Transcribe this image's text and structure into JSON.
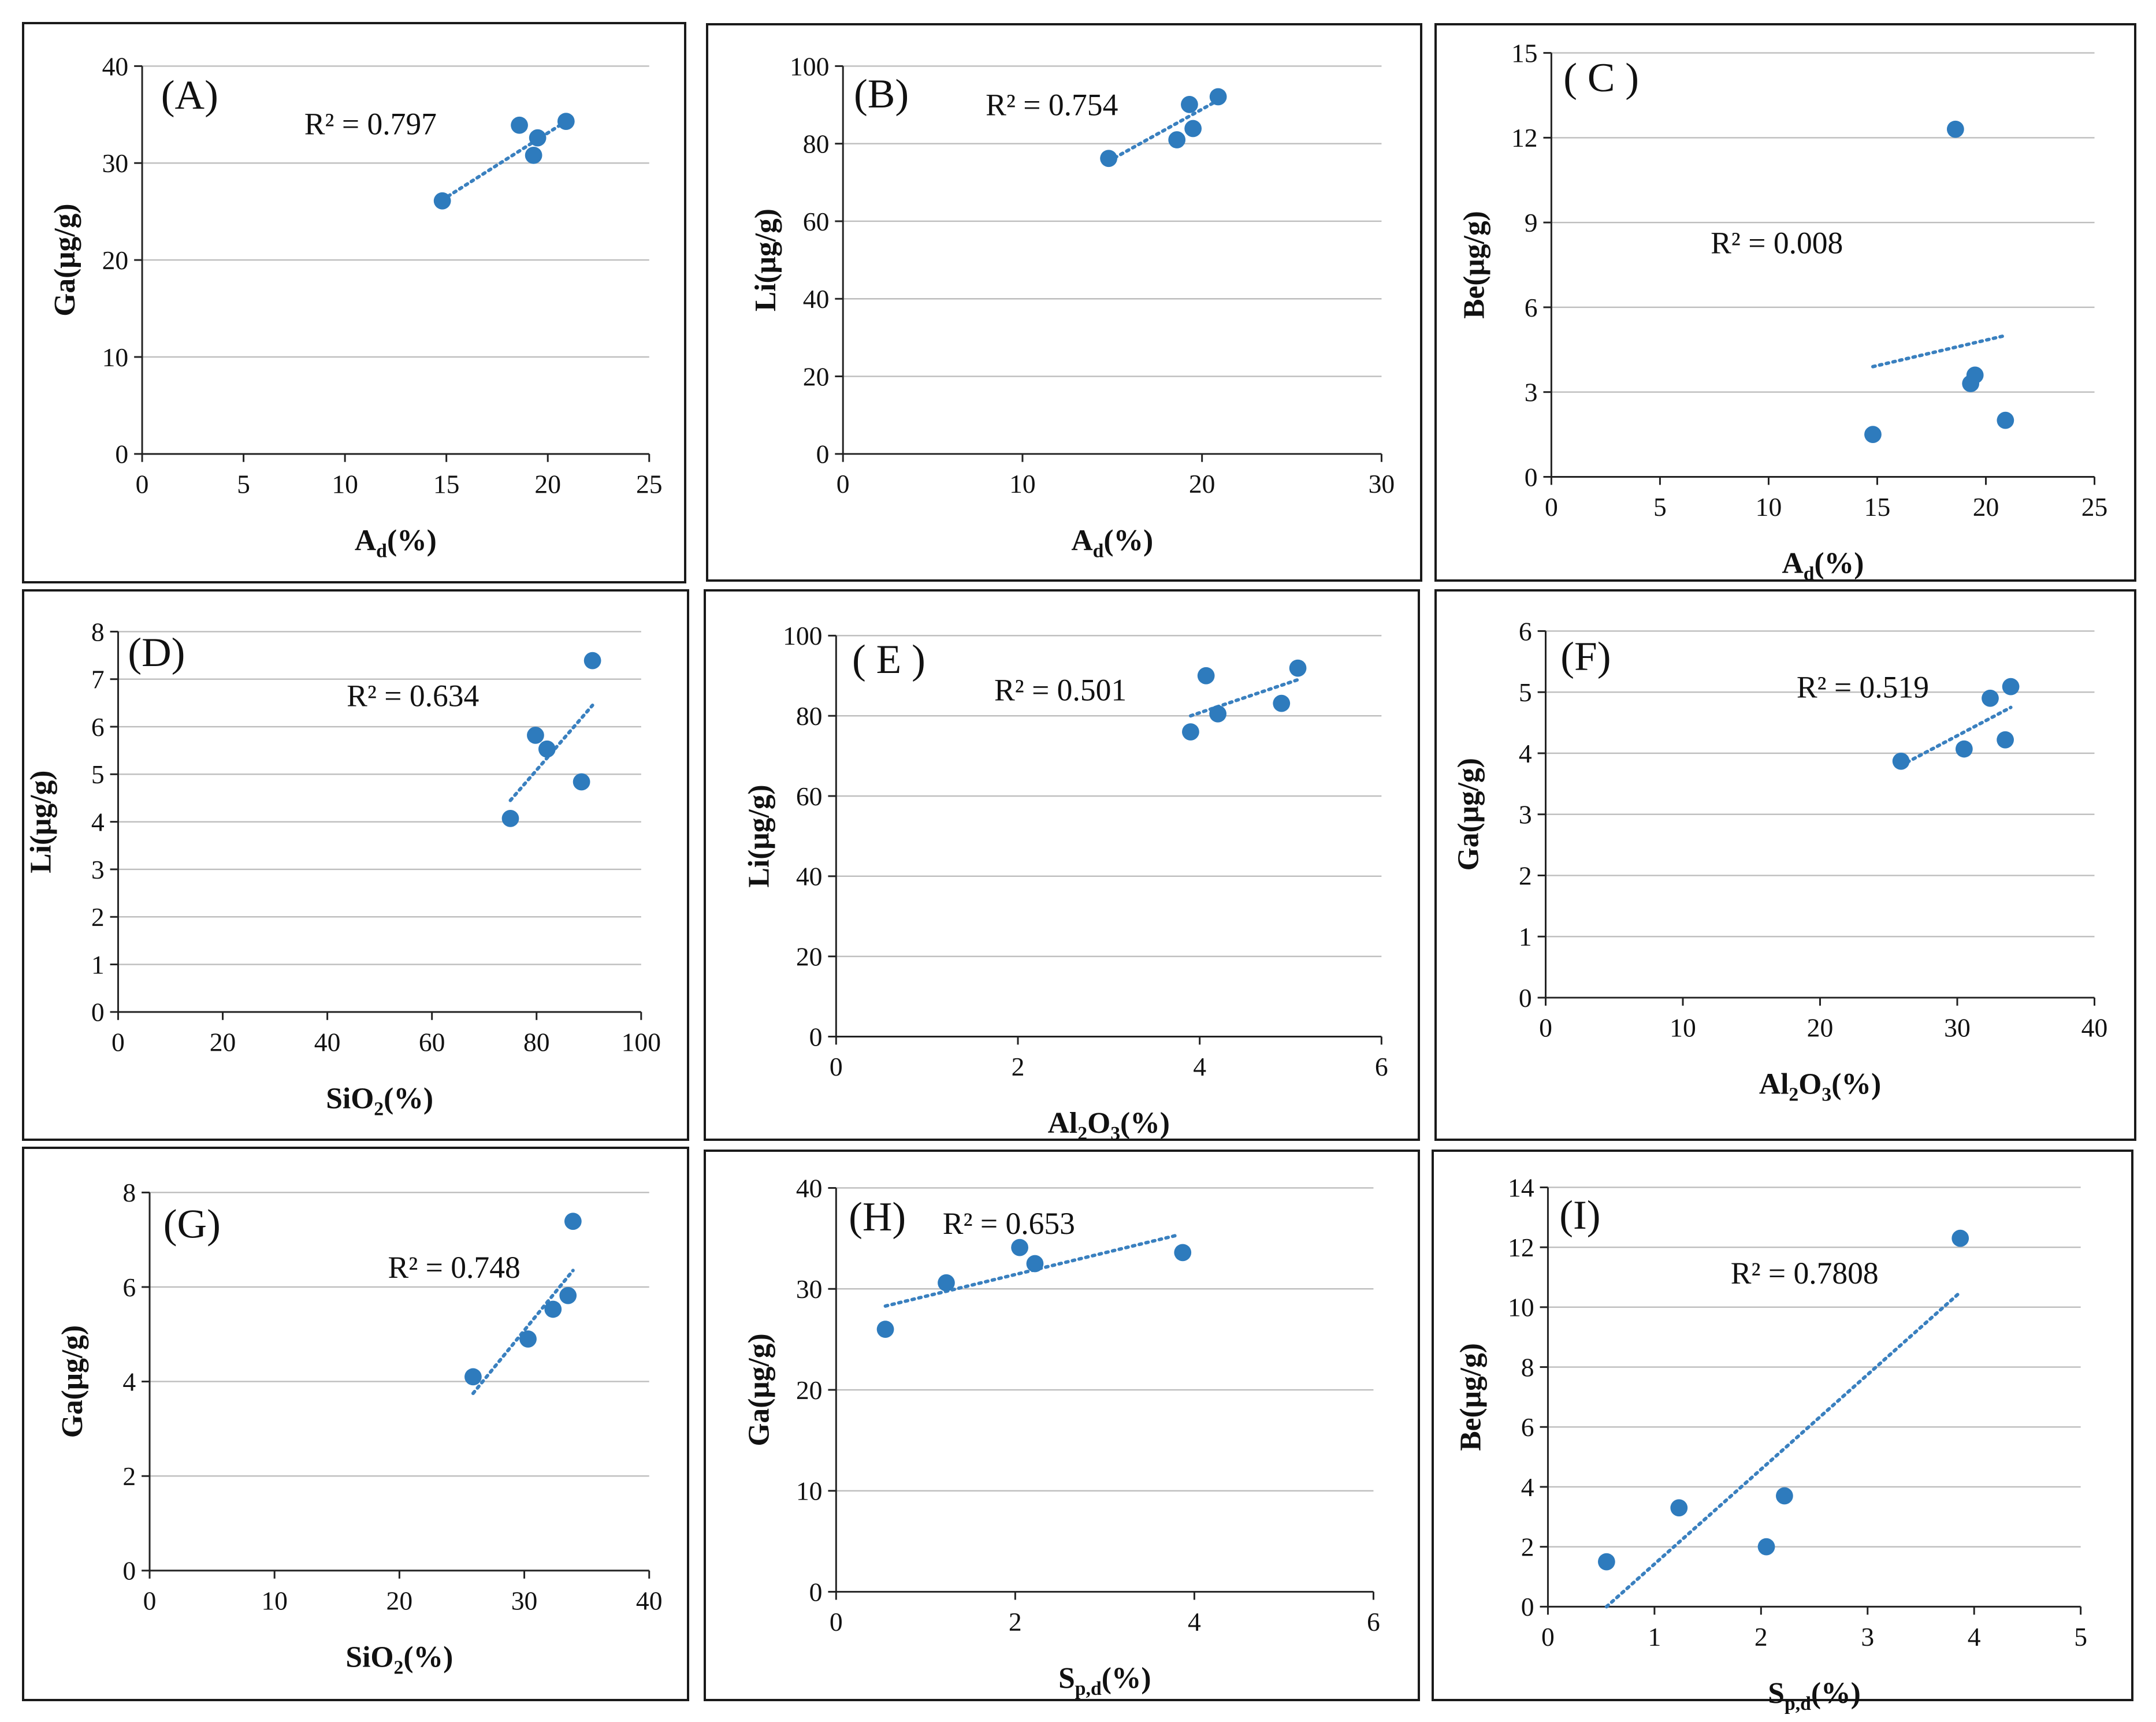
{
  "colors": {
    "point": "#2e7bbd",
    "trend": "#3a80bf",
    "grid": "#bdbdbd",
    "axis": "#222222"
  },
  "chart_data": [
    {
      "type": "scatter",
      "label": "(A)",
      "r2": "R² = 0.797",
      "xlabel": {
        "main": "A",
        "sub": "d",
        "rest": "(%)"
      },
      "ylabel": "Ga(μg/g)",
      "xlim": [
        0,
        25
      ],
      "xticks": [
        0,
        5,
        10,
        15,
        20,
        25
      ],
      "ylim": [
        0,
        40
      ],
      "yticks": [
        0,
        10,
        20,
        30,
        40
      ],
      "points": [
        [
          14.8,
          26.1
        ],
        [
          18.6,
          33.9
        ],
        [
          19.5,
          32.6
        ],
        [
          19.3,
          30.8
        ],
        [
          20.9,
          34.3
        ]
      ],
      "trend": [
        [
          14.8,
          26.2
        ],
        [
          20.9,
          34.3
        ]
      ]
    },
    {
      "type": "scatter",
      "label": "(B)",
      "r2": "R² = 0.754",
      "xlabel": {
        "main": "A",
        "sub": "d",
        "rest": "(%)"
      },
      "ylabel": "Li(μg/g)",
      "xlim": [
        0,
        30
      ],
      "xticks": [
        0,
        10,
        20,
        30
      ],
      "ylim": [
        0,
        100
      ],
      "yticks": [
        0,
        20,
        40,
        60,
        80,
        100
      ],
      "points": [
        [
          14.8,
          76.2
        ],
        [
          18.6,
          81.0
        ],
        [
          19.3,
          90.1
        ],
        [
          19.5,
          83.9
        ],
        [
          20.9,
          92.1
        ]
      ],
      "trend": [
        [
          14.8,
          75.5
        ],
        [
          20.9,
          91.2
        ]
      ]
    },
    {
      "type": "scatter",
      "label": "( C )",
      "r2": "R² = 0.008",
      "xlabel": {
        "main": "A",
        "sub": "d",
        "rest": "(%)"
      },
      "ylabel": "Be(μg/g)",
      "xlim": [
        0,
        25
      ],
      "xticks": [
        0,
        5,
        10,
        15,
        20,
        25
      ],
      "ylim": [
        0,
        15
      ],
      "yticks": [
        0,
        3,
        6,
        9,
        12,
        15
      ],
      "points": [
        [
          14.8,
          1.5
        ],
        [
          18.6,
          12.3
        ],
        [
          19.3,
          3.3
        ],
        [
          19.5,
          3.6
        ],
        [
          20.9,
          2.0
        ]
      ],
      "trend": [
        [
          14.8,
          3.9
        ],
        [
          20.9,
          5.0
        ]
      ]
    },
    {
      "type": "scatter",
      "label": "(D)",
      "r2": "R² = 0.634",
      "xlabel": {
        "main": "SiO",
        "sub": "2",
        "rest": "(%)"
      },
      "ylabel": "Li(μg/g)",
      "xlim": [
        0,
        100
      ],
      "xticks": [
        0,
        20,
        40,
        60,
        80,
        100
      ],
      "ylim": [
        0,
        8
      ],
      "yticks": [
        0,
        1,
        2,
        3,
        4,
        5,
        6,
        7,
        8
      ],
      "points": [
        [
          75.0,
          4.07
        ],
        [
          79.8,
          5.82
        ],
        [
          82.0,
          5.53
        ],
        [
          88.6,
          4.84
        ],
        [
          90.7,
          7.39
        ]
      ],
      "trend": [
        [
          75.0,
          4.45
        ],
        [
          90.7,
          6.45
        ]
      ]
    },
    {
      "type": "scatter",
      "label": "( E )",
      "r2": "R² = 0.501",
      "xlabel": {
        "main": "Al",
        "sub": "2",
        "rest": "O",
        "sub2": "3",
        "rest2": "(%)"
      },
      "ylabel": "Li(μg/g)",
      "xlim": [
        0,
        6
      ],
      "xticks": [
        0,
        2,
        4,
        6
      ],
      "ylim": [
        0,
        100
      ],
      "yticks": [
        0,
        20,
        40,
        60,
        80,
        100
      ],
      "points": [
        [
          3.9,
          76.0
        ],
        [
          4.07,
          90.0
        ],
        [
          4.2,
          80.5
        ],
        [
          4.9,
          83.1
        ],
        [
          5.08,
          91.9
        ]
      ],
      "trend": [
        [
          3.9,
          80.0
        ],
        [
          5.08,
          89.0
        ]
      ]
    },
    {
      "type": "scatter",
      "label": "(F)",
      "r2": "R² = 0.519",
      "xlabel": {
        "main": "Al",
        "sub": "2",
        "rest": "O",
        "sub2": "3",
        "rest2": "(%)"
      },
      "ylabel": "Ga(μg/g)",
      "xlim": [
        0,
        40
      ],
      "xticks": [
        0,
        10,
        20,
        30,
        40
      ],
      "ylim": [
        0,
        6
      ],
      "yticks": [
        0,
        1,
        2,
        3,
        4,
        5,
        6
      ],
      "points": [
        [
          25.9,
          3.87
        ],
        [
          30.5,
          4.07
        ],
        [
          32.4,
          4.9
        ],
        [
          33.5,
          4.22
        ],
        [
          33.9,
          5.09
        ]
      ],
      "trend": [
        [
          25.9,
          3.8
        ],
        [
          33.9,
          4.75
        ]
      ]
    },
    {
      "type": "scatter",
      "label": "(G)",
      "r2": "R² = 0.748",
      "xlabel": {
        "main": "SiO",
        "sub": "2",
        "rest": "(%)"
      },
      "ylabel": "Ga(μg/g)",
      "xlim": [
        0,
        40
      ],
      "xticks": [
        0,
        10,
        20,
        30,
        40
      ],
      "ylim": [
        0,
        8
      ],
      "yticks": [
        0,
        2,
        4,
        6,
        8
      ],
      "points": [
        [
          25.9,
          4.1
        ],
        [
          30.3,
          4.9
        ],
        [
          32.3,
          5.53
        ],
        [
          33.5,
          5.82
        ],
        [
          33.9,
          7.39
        ]
      ],
      "trend": [
        [
          25.9,
          3.75
        ],
        [
          33.9,
          6.35
        ]
      ]
    },
    {
      "type": "scatter",
      "label": "(H)",
      "r2": "R² = 0.653",
      "xlabel": {
        "main": "S",
        "sub": "p,d",
        "rest": "(%)"
      },
      "ylabel": "Ga(μg/g)",
      "xlim": [
        0,
        6
      ],
      "xticks": [
        0,
        2,
        4,
        6
      ],
      "ylim": [
        0,
        40
      ],
      "yticks": [
        0,
        10,
        20,
        30,
        40
      ],
      "points": [
        [
          0.55,
          26.0
        ],
        [
          1.23,
          30.6
        ],
        [
          2.05,
          34.1
        ],
        [
          2.22,
          32.5
        ],
        [
          3.87,
          33.6
        ]
      ],
      "trend": [
        [
          0.55,
          28.3
        ],
        [
          3.8,
          35.3
        ]
      ]
    },
    {
      "type": "scatter",
      "label": "(I)",
      "r2": "R² = 0.7808",
      "xlabel": {
        "main": "S",
        "sub": "p,d",
        "rest": "(%)"
      },
      "ylabel": "Be(μg/g)",
      "xlim": [
        0,
        5
      ],
      "xticks": [
        0,
        1,
        2,
        3,
        4,
        5
      ],
      "ylim": [
        0,
        14
      ],
      "yticks": [
        0,
        2,
        4,
        6,
        8,
        10,
        12,
        14
      ],
      "points": [
        [
          0.55,
          1.5
        ],
        [
          1.23,
          3.3
        ],
        [
          2.05,
          2.0
        ],
        [
          2.22,
          3.7
        ],
        [
          3.87,
          12.3
        ]
      ],
      "trend": [
        [
          0.55,
          0.0
        ],
        [
          3.87,
          10.5
        ]
      ]
    }
  ]
}
